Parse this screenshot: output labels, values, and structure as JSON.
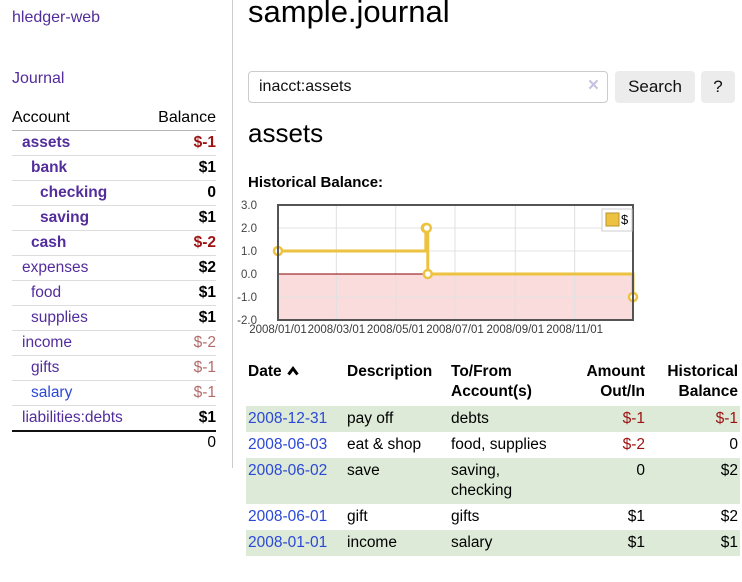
{
  "app": {
    "title": "hledger-web",
    "nav_journal": "Journal"
  },
  "colors": {
    "link_purple": "#522d9b",
    "link_blue": "#2b47d6",
    "negative_strong": "#9e1111",
    "negative_soft": "#b36b6b",
    "row_green": "#dcead7",
    "chart_line": "#edc240",
    "chart_negative_region": "#fbdcdc",
    "chart_zero_line": "#8b0000"
  },
  "sidebar": {
    "headers": {
      "account": "Account",
      "balance": "Balance"
    },
    "rows": [
      {
        "account": "assets",
        "balance": "$-1"
      },
      {
        "account": "bank",
        "balance": "$1"
      },
      {
        "account": "checking",
        "balance": "0"
      },
      {
        "account": "saving",
        "balance": "$1"
      },
      {
        "account": "cash",
        "balance": "$-2"
      },
      {
        "account": "expenses",
        "balance": "$2"
      },
      {
        "account": "food",
        "balance": "$1"
      },
      {
        "account": "supplies",
        "balance": "$1"
      },
      {
        "account": "income",
        "balance": "$-2"
      },
      {
        "account": "gifts",
        "balance": "$-1"
      },
      {
        "account": "salary",
        "balance": "$-1"
      },
      {
        "account": "liabilities:debts",
        "balance": "$1"
      }
    ],
    "total": "0"
  },
  "main": {
    "title": "sample.journal",
    "search": {
      "value": "inacct:assets",
      "clear": "×",
      "button": "Search",
      "help": "?"
    },
    "account_heading": "assets",
    "chart_label": "Historical Balance:"
  },
  "chart_data": {
    "type": "line",
    "step": true,
    "title": "Historical Balance",
    "legend": {
      "label": "$",
      "position": "top-right"
    },
    "series": [
      {
        "name": "$",
        "color": "#edc240",
        "points": [
          [
            "2008-01-01",
            1
          ],
          [
            "2008-06-01",
            2
          ],
          [
            "2008-06-02",
            2
          ],
          [
            "2008-06-03",
            0
          ],
          [
            "2008-12-31",
            -1
          ]
        ]
      }
    ],
    "x_range": [
      "2008-01-01",
      "2008-12-31"
    ],
    "ylim": [
      -2,
      3
    ],
    "y_ticks": [
      "3.0",
      "2.0",
      "1.0",
      "0.0",
      "-1.0",
      "-2.0"
    ],
    "x_tick_labels": [
      "2008/01/01",
      "2008/03/01",
      "2008/05/01",
      "2008/07/01",
      "2008/09/01",
      "2008/11/01"
    ],
    "grid": true,
    "negative_region_color": "#fbdcdc",
    "zero_line_color": "#8b0000"
  },
  "register": {
    "headers": {
      "date": "Date",
      "description": "Description",
      "accounts": "To/From Account(s)",
      "amount": "Amount Out/In",
      "balance": "Historical Balance"
    },
    "rows": [
      {
        "date": "2008-12-31",
        "description": "pay off",
        "accounts": "debts",
        "amount": "$-1",
        "balance": "$-1"
      },
      {
        "date": "2008-06-03",
        "description": "eat & shop",
        "accounts": "food, supplies",
        "amount": "$-2",
        "balance": "0"
      },
      {
        "date": "2008-06-02",
        "description": "save",
        "accounts": "saving, checking",
        "amount": "0",
        "balance": "$2"
      },
      {
        "date": "2008-06-01",
        "description": "gift",
        "accounts": "gifts",
        "amount": "$1",
        "balance": "$2"
      },
      {
        "date": "2008-01-01",
        "description": "income",
        "accounts": "salary",
        "amount": "$1",
        "balance": "$1"
      }
    ]
  }
}
